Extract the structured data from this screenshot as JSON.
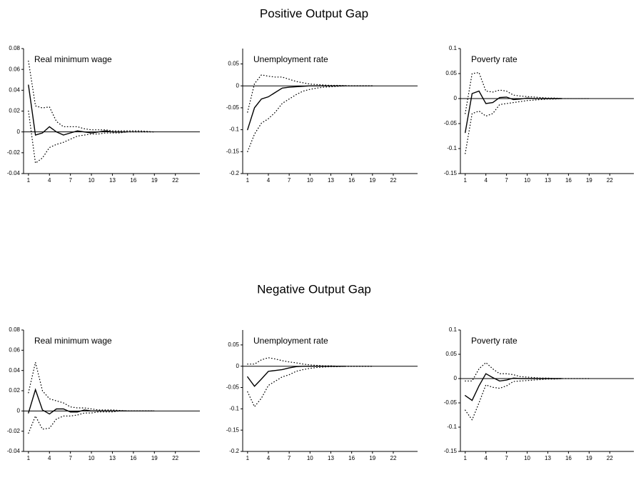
{
  "headings": [
    "Positive Output Gap",
    "Negative Output Gap"
  ],
  "chart_data": [
    {
      "type": "line",
      "title": "Real minimum wage",
      "zero_line": true,
      "x": [
        1,
        2,
        3,
        4,
        5,
        6,
        7,
        8,
        9,
        10,
        11,
        12,
        13,
        14,
        15,
        16,
        17,
        18,
        19
      ],
      "xlim": [
        0.3,
        25.5
      ],
      "xticks": [
        1,
        4,
        7,
        10,
        13,
        16,
        19,
        22
      ],
      "ylim": [
        -0.04,
        0.08
      ],
      "yticks": [
        -0.04,
        -0.02,
        0,
        0.02,
        0.04,
        0.06,
        0.08
      ],
      "series": [
        {
          "color": "#000000",
          "style": "solid",
          "values": [
            0.045,
            -0.003,
            -0.001,
            0.005,
            0,
            -0.003,
            -0.001,
            0.001,
            0,
            -0.001,
            0,
            0.001,
            0,
            0,
            0,
            null,
            null,
            null,
            null
          ]
        },
        {
          "color": "#000000",
          "style": "dotted",
          "values": [
            0.068,
            0.025,
            0.023,
            0.024,
            0.01,
            0.005,
            0.005,
            0.005,
            0.003,
            0.002,
            0.002,
            0.002,
            0.001,
            0.001,
            0.001,
            0.001,
            0.001,
            0.0005,
            0
          ]
        },
        {
          "color": "#000000",
          "style": "dotted",
          "values": [
            0.02,
            -0.03,
            -0.025,
            -0.015,
            -0.012,
            -0.01,
            -0.007,
            -0.004,
            -0.003,
            -0.002,
            -0.002,
            -0.001,
            -0.001,
            -0.001,
            0,
            0,
            0,
            0,
            0
          ]
        }
      ]
    },
    {
      "type": "line",
      "title": "Unemployment rate",
      "zero_line": true,
      "x": [
        1,
        2,
        3,
        4,
        5,
        6,
        7,
        8,
        9,
        10,
        11,
        12,
        13,
        14,
        15,
        16,
        17,
        18,
        19
      ],
      "xlim": [
        0.3,
        25.5
      ],
      "xticks": [
        1,
        4,
        7,
        10,
        13,
        16,
        19,
        22
      ],
      "ylim": [
        -0.2,
        0.085
      ],
      "yticks": [
        -0.2,
        -0.15,
        -0.1,
        -0.05,
        0,
        0.05
      ],
      "series": [
        {
          "color": "#000000",
          "style": "solid",
          "values": [
            -0.1,
            -0.05,
            -0.03,
            -0.025,
            -0.015,
            -0.005,
            -0.003,
            -0.002,
            -0.001,
            0,
            0,
            0,
            0,
            0,
            0,
            null,
            null,
            null,
            null
          ]
        },
        {
          "color": "#000000",
          "style": "dotted",
          "values": [
            -0.06,
            0.005,
            0.025,
            0.022,
            0.02,
            0.02,
            0.015,
            0.01,
            0.007,
            0.004,
            0.003,
            0.002,
            0.001,
            0.001,
            0.0005,
            0,
            0,
            0,
            0
          ]
        },
        {
          "color": "#000000",
          "style": "dotted",
          "values": [
            -0.15,
            -0.11,
            -0.085,
            -0.075,
            -0.06,
            -0.04,
            -0.03,
            -0.02,
            -0.012,
            -0.008,
            -0.005,
            -0.003,
            -0.002,
            -0.001,
            0,
            0,
            0,
            0,
            0
          ]
        }
      ]
    },
    {
      "type": "line",
      "title": "Poverty rate",
      "zero_line": true,
      "x": [
        1,
        2,
        3,
        4,
        5,
        6,
        7,
        8,
        9,
        10,
        11,
        12,
        13,
        14,
        15,
        16,
        17,
        18,
        19
      ],
      "xlim": [
        0.3,
        25.5
      ],
      "xticks": [
        1,
        4,
        7,
        10,
        13,
        16,
        19,
        22
      ],
      "ylim": [
        -0.15,
        0.1
      ],
      "yticks": [
        -0.15,
        -0.1,
        -0.05,
        0,
        0.05,
        0.1
      ],
      "series": [
        {
          "color": "#000000",
          "style": "solid",
          "values": [
            -0.068,
            0.01,
            0.015,
            -0.01,
            -0.008,
            0.002,
            0.003,
            -0.002,
            -0.001,
            0.001,
            0,
            0,
            0,
            0,
            0,
            null,
            null,
            null,
            null
          ]
        },
        {
          "color": "#000000",
          "style": "dotted",
          "values": [
            -0.03,
            0.05,
            0.052,
            0.015,
            0.013,
            0.017,
            0.015,
            0.007,
            0.005,
            0.004,
            0.003,
            0.002,
            0.001,
            0.001,
            0,
            0,
            0,
            0,
            0
          ]
        },
        {
          "color": "#000000",
          "style": "dotted",
          "values": [
            -0.11,
            -0.03,
            -0.025,
            -0.035,
            -0.03,
            -0.012,
            -0.01,
            -0.008,
            -0.006,
            -0.004,
            -0.003,
            -0.002,
            -0.001,
            -0.001,
            0,
            0,
            0,
            0,
            0
          ]
        }
      ]
    },
    {
      "type": "line",
      "title": "Real minimum wage",
      "zero_line": true,
      "x": [
        1,
        2,
        3,
        4,
        5,
        6,
        7,
        8,
        9,
        10,
        11,
        12,
        13,
        14,
        15,
        16,
        17,
        18,
        19
      ],
      "xlim": [
        0.3,
        25.5
      ],
      "xticks": [
        1,
        4,
        7,
        10,
        13,
        16,
        19,
        22
      ],
      "ylim": [
        -0.04,
        0.08
      ],
      "yticks": [
        -0.04,
        -0.02,
        0,
        0.02,
        0.04,
        0.06,
        0.08
      ],
      "series": [
        {
          "color": "#000000",
          "style": "solid",
          "values": [
            -0.002,
            0.021,
            0.001,
            -0.003,
            0.002,
            0.002,
            -0.001,
            -0.001,
            0.001,
            0,
            0,
            0,
            0,
            0,
            0,
            null,
            null,
            null,
            null
          ]
        },
        {
          "color": "#000000",
          "style": "dotted",
          "values": [
            0.018,
            0.048,
            0.02,
            0.012,
            0.01,
            0.008,
            0.004,
            0.003,
            0.003,
            0.002,
            0.001,
            0.001,
            0.001,
            0.0005,
            0,
            0,
            0,
            0,
            0
          ]
        },
        {
          "color": "#000000",
          "style": "dotted",
          "values": [
            -0.022,
            -0.005,
            -0.018,
            -0.017,
            -0.008,
            -0.005,
            -0.005,
            -0.004,
            -0.002,
            -0.002,
            -0.001,
            -0.001,
            -0.001,
            0,
            0,
            0,
            0,
            0,
            0
          ]
        }
      ]
    },
    {
      "type": "line",
      "title": "Unemployment rate",
      "zero_line": true,
      "x": [
        1,
        2,
        3,
        4,
        5,
        6,
        7,
        8,
        9,
        10,
        11,
        12,
        13,
        14,
        15,
        16,
        17,
        18,
        19
      ],
      "xlim": [
        0.3,
        25.5
      ],
      "xticks": [
        1,
        4,
        7,
        10,
        13,
        16,
        19,
        22
      ],
      "ylim": [
        -0.2,
        0.085
      ],
      "yticks": [
        -0.2,
        -0.15,
        -0.1,
        -0.05,
        0,
        0.05
      ],
      "series": [
        {
          "color": "#000000",
          "style": "solid",
          "values": [
            -0.025,
            -0.047,
            -0.03,
            -0.012,
            -0.01,
            -0.008,
            -0.004,
            -0.001,
            0,
            0,
            0,
            0,
            0,
            0,
            0,
            null,
            null,
            null,
            null
          ]
        },
        {
          "color": "#000000",
          "style": "dotted",
          "values": [
            0.005,
            0.005,
            0.015,
            0.02,
            0.017,
            0.013,
            0.01,
            0.008,
            0.005,
            0.003,
            0.002,
            0.001,
            0.001,
            0,
            0,
            0,
            0,
            0,
            0
          ]
        },
        {
          "color": "#000000",
          "style": "dotted",
          "values": [
            -0.06,
            -0.095,
            -0.075,
            -0.045,
            -0.035,
            -0.025,
            -0.02,
            -0.012,
            -0.008,
            -0.005,
            -0.003,
            -0.002,
            -0.001,
            -0.001,
            0,
            0,
            0,
            0,
            0
          ]
        }
      ]
    },
    {
      "type": "line",
      "title": "Poverty rate",
      "zero_line": true,
      "x": [
        1,
        2,
        3,
        4,
        5,
        6,
        7,
        8,
        9,
        10,
        11,
        12,
        13,
        14,
        15,
        16,
        17,
        18,
        19
      ],
      "xlim": [
        0.3,
        25.5
      ],
      "xticks": [
        1,
        4,
        7,
        10,
        13,
        16,
        19,
        22
      ],
      "ylim": [
        -0.15,
        0.1
      ],
      "yticks": [
        -0.15,
        -0.1,
        -0.05,
        0,
        0.05,
        0.1
      ],
      "series": [
        {
          "color": "#000000",
          "style": "solid",
          "values": [
            -0.035,
            -0.045,
            -0.015,
            0.01,
            0.002,
            -0.005,
            -0.003,
            0.001,
            0,
            0,
            0,
            0,
            0,
            0,
            0,
            null,
            null,
            null,
            null
          ]
        },
        {
          "color": "#000000",
          "style": "dotted",
          "values": [
            -0.005,
            -0.005,
            0.02,
            0.033,
            0.02,
            0.01,
            0.01,
            0.008,
            0.004,
            0.003,
            0.002,
            0.001,
            0.001,
            0,
            0,
            0,
            0,
            0,
            0
          ]
        },
        {
          "color": "#000000",
          "style": "dotted",
          "values": [
            -0.065,
            -0.085,
            -0.05,
            -0.013,
            -0.018,
            -0.02,
            -0.015,
            -0.006,
            -0.005,
            -0.004,
            -0.003,
            -0.002,
            -0.001,
            -0.001,
            0,
            0,
            0,
            0,
            0
          ]
        }
      ]
    }
  ]
}
